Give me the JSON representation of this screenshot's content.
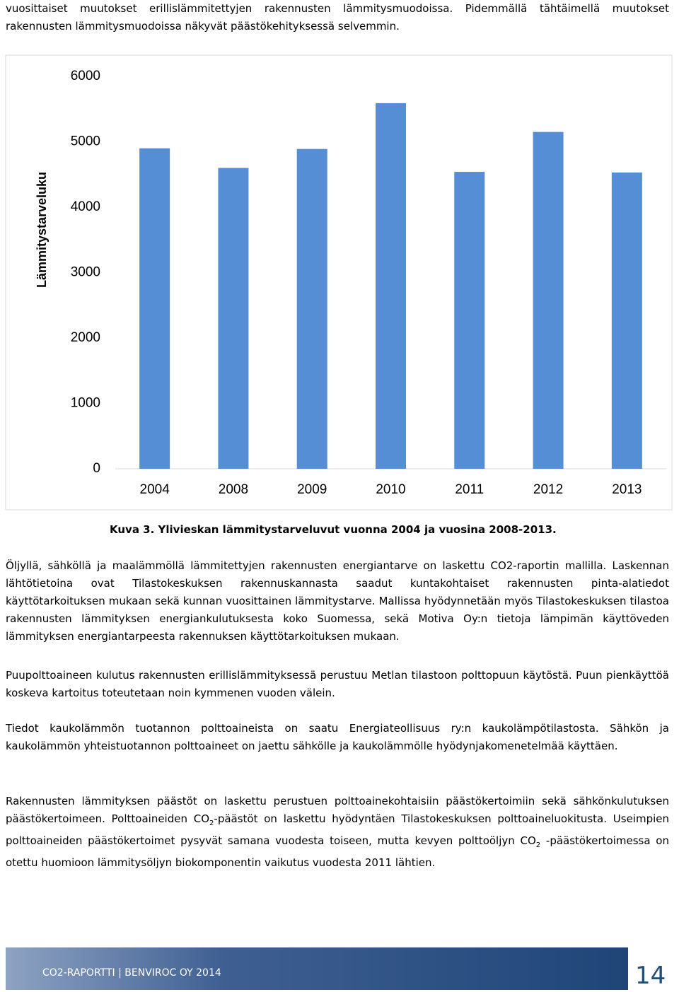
{
  "intro": "vuosittaiset muutokset erillislämmitettyjen rakennusten lämmitysmuodoissa. Pidemmällä tähtäimellä muutokset rakennusten lämmitysmuodoissa näkyvät päästökehityksessä selvemmin.",
  "chart_data": {
    "type": "bar",
    "y_label": "Lämmitystarveluku",
    "categories": [
      "2004",
      "2008",
      "2009",
      "2010",
      "2011",
      "2012",
      "2013"
    ],
    "values": [
      4900,
      4600,
      4890,
      5590,
      4540,
      5150,
      4530
    ],
    "color": "#558ed5",
    "ylim": [
      0,
      6000
    ],
    "yticks": [
      0,
      1000,
      2000,
      3000,
      4000,
      5000,
      6000
    ],
    "grid": false
  },
  "caption": "Kuva 3. Ylivieskan lämmitystarveluvut vuonna 2004 ja vuosina 2008-2013.",
  "paragraphs": [
    [
      "Öljyllä, sähköllä ja maalämmöllä lämmitettyjen rakennusten energiantarve on laskettu CO2-raportin mallilla. Laskennan lähtötietoina ovat Tilastokeskuksen rakennuskannasta saadut kuntakohtaiset rakennusten pinta-alatiedot käyttötarkoituksen mukaan sekä kunnan vuosittainen lämmitystarve. Mallissa hyödynnetään myös Tilastokeskuksen tilastoa rakennusten lämmityksen energiankulutuksesta koko Suomessa, sekä Motiva Oy:n tietoja lämpimän käyttöveden lämmityksen energiantarpeesta rakennuksen käyttötarkoituksen mukaan."
    ],
    [
      "Puupolttoaineen kulutus rakennusten erillislämmityksessä perustuu Metlan tilastoon polttopuun käytöstä. Puun pienkäyttöä koskeva kartoitus toteutetaan noin kymmenen vuoden välein."
    ],
    [
      "Tiedot kaukolämmön tuotannon polttoaineista on saatu Energiateollisuus ry:n kaukolämpötilastosta. Sähkön ja kaukolämmön yhteistuotannon polttoaineet on jaettu sähkölle ja kaukolämmölle hyödynjakomenetelmää käyttäen."
    ],
    [
      "Rakennusten lämmityksen päästöt on laskettu perustuen polttoainekohtaisiin päästökertoimiin sekä sähkönkulutuksen päästökertoimeen. Polttoaineiden CO",
      "2",
      "-päästöt on laskettu hyödyntäen Tilastokeskuksen polttoaineluokitusta. Useimpien polttoaineiden päästökertoimet pysyvät samana vuodesta toiseen, mutta kevyen polttoöljyn CO",
      "2",
      " -päästökertoimessa on otettu huomioon lämmitysöljyn biokomponentin vaikutus vuodesta 2011 lähtien."
    ]
  ],
  "footer": {
    "text": "CO2-RAPORTTI | BENVIROC OY 2014",
    "page": "14"
  }
}
